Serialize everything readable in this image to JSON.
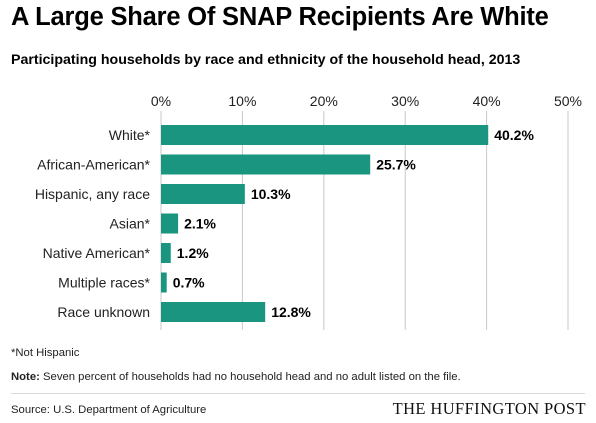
{
  "header": {
    "title": "A Large Share Of SNAP Recipients Are White",
    "subtitle": "Participating households by race and ethnicity of the household head, 2013"
  },
  "chart_data": {
    "type": "bar",
    "orientation": "horizontal",
    "categories": [
      "White*",
      "African-American*",
      "Hispanic, any race",
      "Asian*",
      "Native American*",
      "Multiple races*",
      "Race unknown"
    ],
    "values": [
      40.2,
      25.7,
      10.3,
      2.1,
      1.2,
      0.7,
      12.8
    ],
    "value_labels": [
      "40.2%",
      "25.7%",
      "10.3%",
      "2.1%",
      "1.2%",
      "0.7%",
      "12.8%"
    ],
    "xlim": [
      0,
      50
    ],
    "xticks": [
      0,
      10,
      20,
      30,
      40,
      50
    ],
    "xtick_labels": [
      "0%",
      "10%",
      "20%",
      "30%",
      "40%",
      "50%"
    ],
    "axis_position": "top",
    "grid": true,
    "bar_color": "#1a9680",
    "grid_color": "#c8c8c8",
    "title": "A Large Share Of SNAP Recipients Are White",
    "subtitle": "Participating households by race and ethnicity of the household head, 2013",
    "xlabel": "",
    "ylabel": ""
  },
  "footer": {
    "footnote": "*Not Hispanic",
    "note_label": "Note:",
    "note_text": " Seven percent of households had no household head and no adult listed on the file.",
    "source": "Source: U.S. Department of Agriculture",
    "brand": "THE HUFFINGTON POST"
  }
}
